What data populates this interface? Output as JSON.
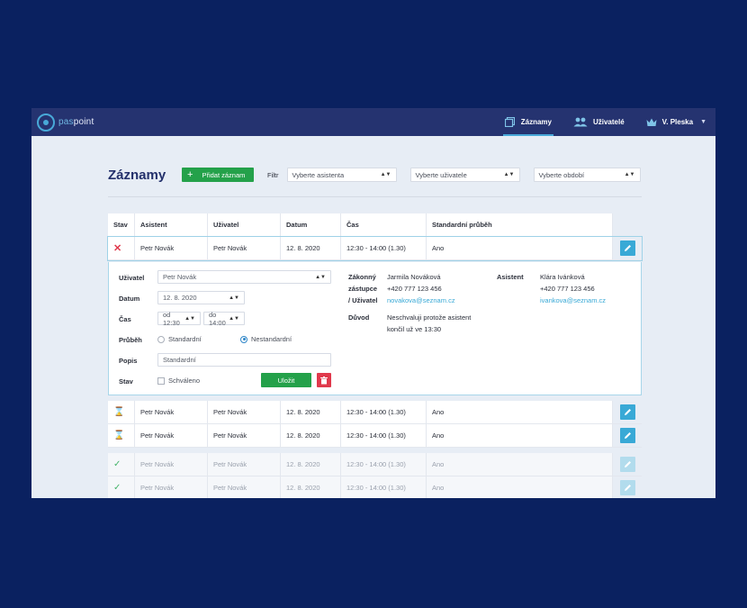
{
  "app": {
    "logo_a": "pas",
    "logo_b": "point"
  },
  "nav": [
    {
      "label": "Záznamy",
      "icon": "records-icon"
    },
    {
      "label": "Uživatelé",
      "icon": "users-icon"
    },
    {
      "label": "V. Pleska",
      "icon": "crown-icon"
    }
  ],
  "header": {
    "title": "Záznamy",
    "add_label": "Přidat záznam",
    "filter_label": "Filtr",
    "filter_assistant": "Vyberte asistenta",
    "filter_user": "Vyberte uživatele",
    "filter_period": "Vyberte období"
  },
  "table": {
    "columns": [
      "Stav",
      "Asistent",
      "Uživatel",
      "Datum",
      "Čas",
      "Standardní průběh"
    ],
    "rows": [
      {
        "status": "rejected",
        "asistent": "Petr Novák",
        "uzivatel": "Petr Novák",
        "datum": "12. 8. 2020",
        "cas": "12:30 - 14:00 (1.30)",
        "std": "Ano"
      },
      {
        "status": "pending",
        "asistent": "Petr Novák",
        "uzivatel": "Petr Novák",
        "datum": "12. 8. 2020",
        "cas": "12:30 - 14:00 (1.30)",
        "std": "Ano"
      },
      {
        "status": "pending",
        "asistent": "Petr Novák",
        "uzivatel": "Petr Novák",
        "datum": "12. 8. 2020",
        "cas": "12:30 - 14:00 (1.30)",
        "std": "Ano"
      },
      {
        "status": "approved",
        "asistent": "Petr Novák",
        "uzivatel": "Petr Novák",
        "datum": "12. 8. 2020",
        "cas": "12:30 - 14:00 (1.30)",
        "std": "Ano"
      },
      {
        "status": "approved",
        "asistent": "Petr Novák",
        "uzivatel": "Petr Novák",
        "datum": "12. 8. 2020",
        "cas": "12:30 - 14:00 (1.30)",
        "std": "Ano"
      }
    ]
  },
  "detail": {
    "labels": {
      "uzivatel": "Uživatel",
      "datum": "Datum",
      "cas": "Čas",
      "prubeh": "Průběh",
      "popis": "Popis",
      "stav": "Stav",
      "zakonny_1": "Zákonný",
      "zakonny_2": "zástupce",
      "zakonny_3": "/ Uživatel",
      "duvod": "Důvod",
      "asistent": "Asistent"
    },
    "uzivatel_value": "Petr Novák",
    "datum_value": "12. 8. 2020",
    "cas_od": "od 12:30",
    "cas_do": "do 14:00",
    "prubeh_standard": "Standardní",
    "prubeh_nestandard": "Nestandardní",
    "prubeh_selected": "Nestandardní",
    "popis_value": "Standardní",
    "stav_checkbox": "Schváleno",
    "save_label": "Uložit",
    "zastupce_name": "Jarmila Nováková",
    "zastupce_phone": "+420 777 123 456",
    "zastupce_email": "novakova@seznam.cz",
    "duvod_line1": "Neschvaluji protože asistent",
    "duvod_line2": "končil už ve 13:30",
    "asistent_name": "Klára Ivánková",
    "asistent_phone": "+420 777 123 456",
    "asistent_email": "ivankova@seznam.cz"
  },
  "colors": {
    "accent": "#39a9d6",
    "primary_green": "#24a14a",
    "danger": "#e0394c",
    "nav_bg": "#253370"
  }
}
